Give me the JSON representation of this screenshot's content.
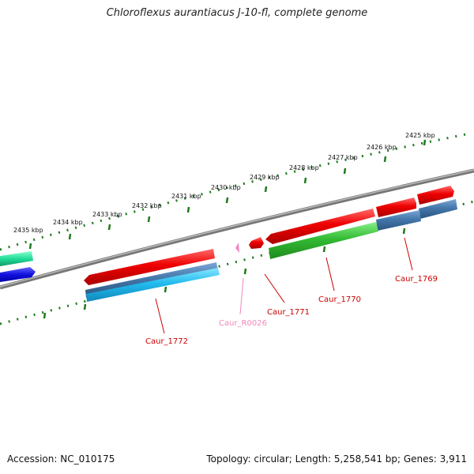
{
  "title": "Chloroflexus aurantiacus J-10-fl, complete genome",
  "footer": {
    "accession": "Accession: NC_010175",
    "summary": "Topology: circular; Length: 5,258,541 bp; Genes: 3,911"
  },
  "ticks": [
    "2425 kbp",
    "2426 kbp",
    "2427 kbp",
    "2428 kbp",
    "2429 kbp",
    "2430 kbp",
    "2431 kbp",
    "2432 kbp",
    "2433 kbp",
    "2434 kbp",
    "2435 kbp"
  ],
  "genes": {
    "caur_1769": "Caur_1769",
    "caur_1770": "Caur_1770",
    "caur_1771": "Caur_1771",
    "caur_r0026": "Caur_R0026",
    "caur_1772": "Caur_1772"
  },
  "colors": {
    "tick_green": "#1e7a1e",
    "backbone": "#888888",
    "cds_red": "#e60000",
    "cds_green": "#33bb33",
    "cds_blue": "#4477aa",
    "cds_cyan": "#22bbee",
    "rna_pink": "#ee88bb",
    "label_red": "#cc0000",
    "label_pink": "#ee88bb",
    "teal": "#22dd99",
    "navy": "#1111dd"
  }
}
